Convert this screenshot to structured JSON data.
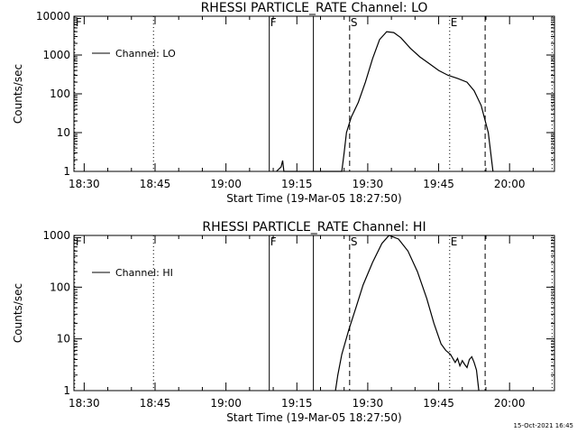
{
  "footer_timestamp": "15-Oct-2021 16:45",
  "chart_data": [
    {
      "type": "line",
      "title": "RHESSI PARTICLE_RATE Channel: LO",
      "xlabel": "Start Time (19-Mar-05 18:27:50)",
      "ylabel": "Counts/sec",
      "y_scale": "log",
      "ylim": [
        1,
        10000
      ],
      "xlim": [
        "18:27:50",
        "20:09:30"
      ],
      "grid": false,
      "legend": "top-left",
      "x_ticks": [
        "18:30",
        "18:45",
        "19:00",
        "19:15",
        "19:30",
        "19:45",
        "20:00"
      ],
      "y_ticks": [
        "1",
        "10",
        "100",
        "1000",
        "10000"
      ],
      "series": [
        {
          "name": "Channel: LO",
          "points": [
            [
              "19:10:40",
              1.0
            ],
            [
              "19:11:40",
              1.3
            ],
            [
              "19:12:00",
              1.9
            ],
            [
              "19:12:15",
              1.0
            ],
            [
              "19:24:30",
              1.0
            ],
            [
              "19:25:00",
              3.0
            ],
            [
              "19:25:30",
              10
            ],
            [
              "19:26:30",
              25
            ],
            [
              "19:28:00",
              60
            ],
            [
              "19:29:30",
              200
            ],
            [
              "19:31:00",
              800
            ],
            [
              "19:32:30",
              2500
            ],
            [
              "19:34:00",
              4000
            ],
            [
              "19:35:30",
              3800
            ],
            [
              "19:37:00",
              2800
            ],
            [
              "19:39:00",
              1500
            ],
            [
              "19:41:00",
              900
            ],
            [
              "19:43:00",
              600
            ],
            [
              "19:45:00",
              400
            ],
            [
              "19:47:00",
              300
            ],
            [
              "19:49:00",
              250
            ],
            [
              "19:51:00",
              200
            ],
            [
              "19:52:30",
              120
            ],
            [
              "19:54:00",
              50
            ],
            [
              "19:55:30",
              10
            ],
            [
              "19:56:30",
              1.0
            ]
          ]
        }
      ],
      "markers": [
        {
          "label": "F",
          "time": "18:28:00",
          "style": "dotted"
        },
        {
          "label": "",
          "time": "18:44:40",
          "style": "dotted"
        },
        {
          "label": "F",
          "time": "19:09:10",
          "style": "solid"
        },
        {
          "label": "",
          "time": "19:18:30",
          "style": "solid"
        },
        {
          "label": "S",
          "time": "19:26:10",
          "style": "dashed"
        },
        {
          "label": "E",
          "time": "19:47:20",
          "style": "dotted"
        },
        {
          "label": "",
          "time": "19:54:50",
          "style": "dashed"
        },
        {
          "label": "",
          "time": "20:09:00",
          "style": "dotted"
        }
      ]
    },
    {
      "type": "line",
      "title": "RHESSI PARTICLE_RATE Channel: HI",
      "xlabel": "Start Time (19-Mar-05 18:27:50)",
      "ylabel": "Counts/sec",
      "y_scale": "log",
      "ylim": [
        1,
        1000
      ],
      "xlim": [
        "18:27:50",
        "20:09:30"
      ],
      "grid": false,
      "legend": "top-left",
      "x_ticks": [
        "18:30",
        "18:45",
        "19:00",
        "19:15",
        "19:30",
        "19:45",
        "20:00"
      ],
      "y_ticks": [
        "1",
        "10",
        "100",
        "1000"
      ],
      "series": [
        {
          "name": "Channel: HI",
          "points": [
            [
              "19:23:10",
              1.0
            ],
            [
              "19:23:40",
              2.0
            ],
            [
              "19:24:30",
              5.0
            ],
            [
              "19:26:00",
              15
            ],
            [
              "19:27:30",
              40
            ],
            [
              "19:29:00",
              110
            ],
            [
              "19:31:00",
              300
            ],
            [
              "19:33:00",
              700
            ],
            [
              "19:34:30",
              1000
            ],
            [
              "19:36:30",
              850
            ],
            [
              "19:38:30",
              500
            ],
            [
              "19:40:30",
              200
            ],
            [
              "19:42:30",
              60
            ],
            [
              "19:44:00",
              20
            ],
            [
              "19:45:30",
              8
            ],
            [
              "19:46:30",
              6
            ],
            [
              "19:47:30",
              5
            ],
            [
              "19:48:30",
              3.5
            ],
            [
              "19:49:00",
              4.2
            ],
            [
              "19:49:30",
              3.0
            ],
            [
              "19:50:00",
              3.8
            ],
            [
              "19:50:30",
              3.2
            ],
            [
              "19:51:00",
              2.8
            ],
            [
              "19:51:30",
              4.0
            ],
            [
              "19:52:00",
              4.5
            ],
            [
              "19:52:30",
              3.5
            ],
            [
              "19:53:00",
              2.5
            ],
            [
              "19:53:30",
              1.0
            ]
          ]
        }
      ],
      "markers": [
        {
          "label": "F",
          "time": "18:28:00",
          "style": "dotted"
        },
        {
          "label": "",
          "time": "18:44:40",
          "style": "dotted"
        },
        {
          "label": "F",
          "time": "19:09:10",
          "style": "solid"
        },
        {
          "label": "",
          "time": "19:18:30",
          "style": "solid"
        },
        {
          "label": "S",
          "time": "19:26:10",
          "style": "dashed"
        },
        {
          "label": "E",
          "time": "19:47:20",
          "style": "dotted"
        },
        {
          "label": "",
          "time": "19:54:50",
          "style": "dashed"
        },
        {
          "label": "",
          "time": "20:09:00",
          "style": "dotted"
        }
      ]
    }
  ]
}
